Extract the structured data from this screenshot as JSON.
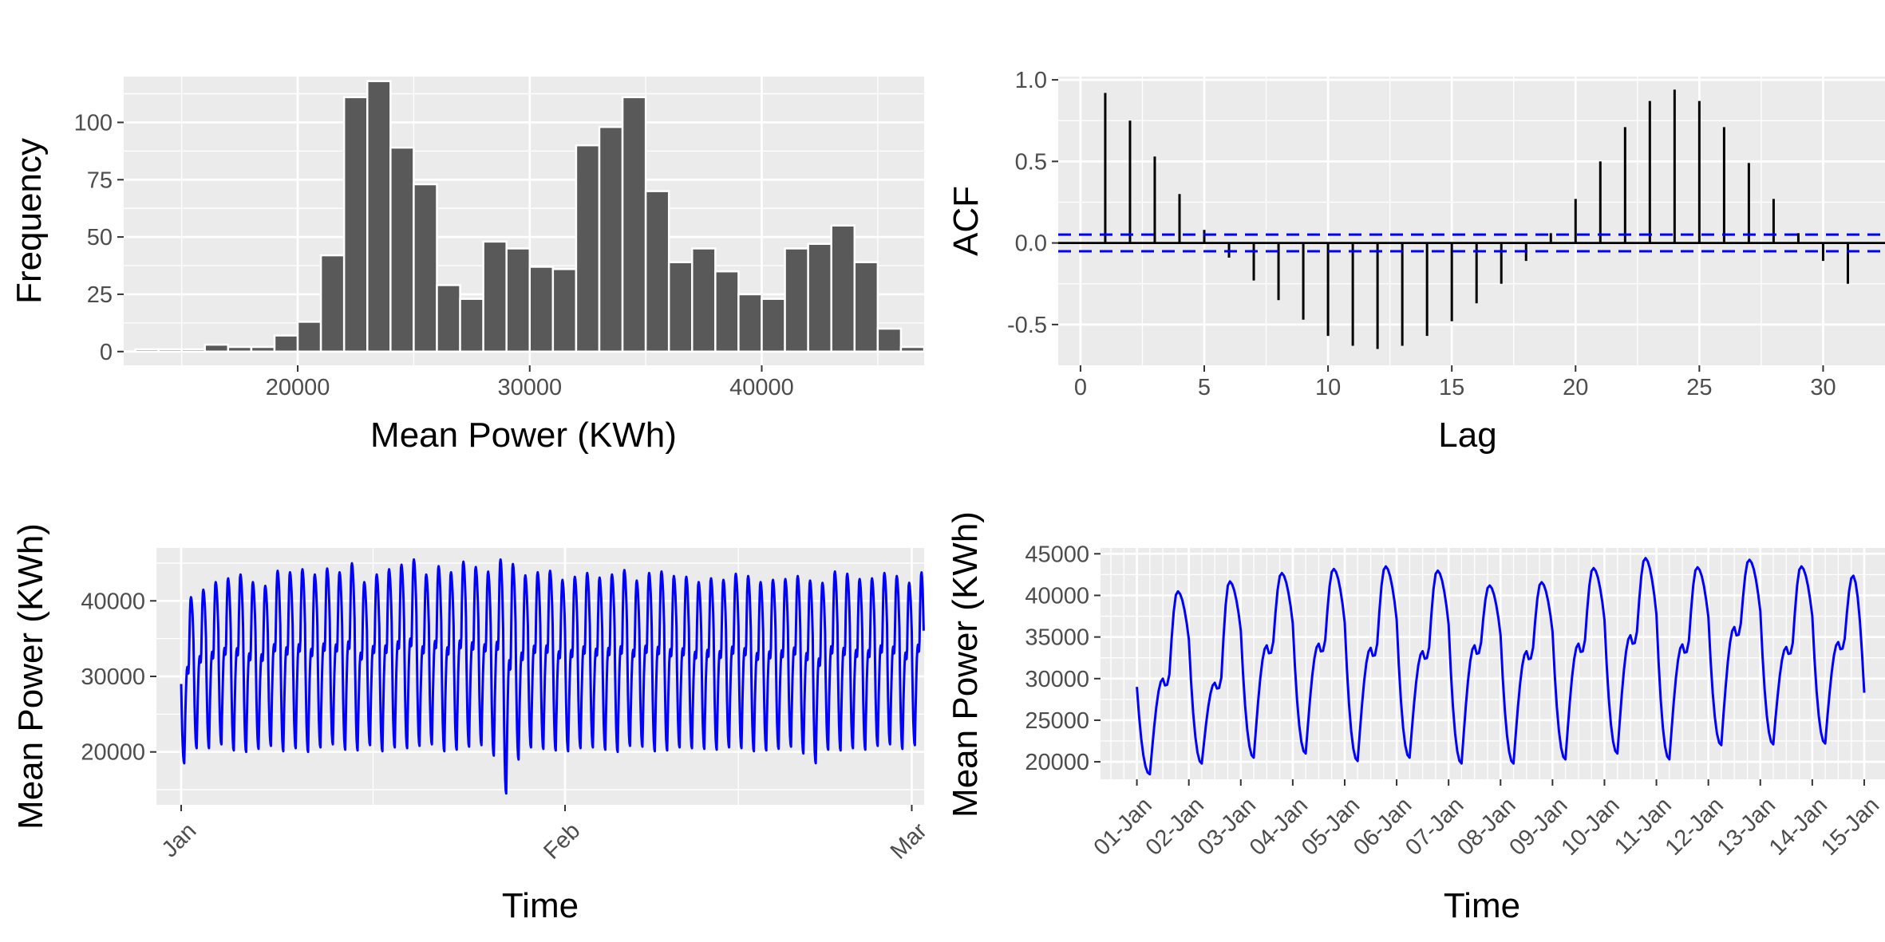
{
  "chart_data": [
    {
      "type": "bar",
      "subtype": "histogram",
      "xlabel": "Mean Power (KWh)",
      "ylabel": "Frequency",
      "xlim": [
        12500,
        47000
      ],
      "ylim": [
        -6,
        120
      ],
      "xticks": [
        20000,
        30000,
        40000
      ],
      "xtick_labels": [
        "20000",
        "30000",
        "40000"
      ],
      "yticks": [
        0,
        25,
        50,
        75,
        100
      ],
      "ytick_labels": [
        "0",
        "25",
        "50",
        "75",
        "100"
      ],
      "bin_width": 1000,
      "bin_centers": [
        13500,
        14500,
        15500,
        16500,
        17500,
        18500,
        19500,
        20500,
        21500,
        22500,
        23500,
        24500,
        25500,
        26500,
        27500,
        28500,
        29500,
        30500,
        31500,
        32500,
        33500,
        34500,
        35500,
        36500,
        37500,
        38500,
        39500,
        40500,
        41500,
        42500,
        43500,
        44500,
        45500,
        46500
      ],
      "values": [
        1,
        1,
        1,
        3,
        2,
        2,
        7,
        13,
        42,
        111,
        118,
        89,
        73,
        29,
        23,
        48,
        45,
        37,
        36,
        90,
        98,
        111,
        70,
        39,
        45,
        35,
        25,
        23,
        45,
        47,
        55,
        39,
        10,
        2
      ],
      "colors": {
        "bar": "#595959",
        "panel": "#ebebeb",
        "grid": "#ffffff"
      },
      "grid": true
    },
    {
      "type": "bar",
      "subtype": "acf",
      "xlabel": "Lag",
      "ylabel": "ACF",
      "xlim": [
        -0.9,
        32.5
      ],
      "ylim": [
        -0.75,
        1.02
      ],
      "xticks": [
        0,
        5,
        10,
        15,
        20,
        25,
        30
      ],
      "xtick_labels": [
        "0",
        "5",
        "10",
        "15",
        "20",
        "25",
        "30"
      ],
      "yticks": [
        -0.5,
        0.0,
        0.5,
        1.0
      ],
      "ytick_labels": [
        "-0.5",
        "0.0",
        "0.5",
        "1.0"
      ],
      "lags": [
        1,
        2,
        3,
        4,
        5,
        6,
        7,
        8,
        9,
        10,
        11,
        12,
        13,
        14,
        15,
        16,
        17,
        18,
        19,
        20,
        21,
        22,
        23,
        24,
        25,
        26,
        27,
        28,
        29,
        30,
        31
      ],
      "values": [
        0.92,
        0.75,
        0.53,
        0.3,
        0.08,
        -0.09,
        -0.23,
        -0.35,
        -0.47,
        -0.57,
        -0.63,
        -0.65,
        -0.63,
        -0.57,
        -0.48,
        -0.37,
        -0.25,
        -0.11,
        0.06,
        0.27,
        0.5,
        0.71,
        0.87,
        0.94,
        0.87,
        0.71,
        0.49,
        0.27,
        0.06,
        -0.11,
        -0.25
      ],
      "conf_limit": 0.051,
      "colors": {
        "stem": "#000000",
        "conf": "#0000ff",
        "panel": "#ebebeb",
        "grid": "#ffffff"
      },
      "grid": true
    },
    {
      "type": "line",
      "xlabel": "Time",
      "ylabel": "Mean Power (KWh)",
      "x_range": [
        "2000-12-30",
        "2001-03-02"
      ],
      "ylim": [
        13000,
        47000
      ],
      "xticks": [
        "Jan",
        "Feb",
        "Mar"
      ],
      "yticks": [
        20000,
        30000,
        40000
      ],
      "ytick_labels": [
        "20000",
        "30000",
        "40000"
      ],
      "x_start": "2001-01-01",
      "x_end": "2001-03-01",
      "samples_per_day": 24,
      "daily_peaks": [
        40500,
        41500,
        42500,
        43000,
        43500,
        42500,
        42000,
        44000,
        43800,
        44200,
        43500,
        44300,
        43800,
        45000,
        42500,
        43500,
        44200,
        44800,
        45500,
        43500,
        44600,
        43800,
        45200,
        44500,
        43900,
        45500,
        44900,
        43400,
        43800,
        44000,
        42800,
        43200,
        43700,
        43100,
        43500,
        44100,
        42700,
        43700,
        43900,
        43300,
        43200,
        42500,
        43000,
        42800,
        43600,
        43300,
        42500,
        42800,
        42900,
        43300,
        42700,
        42400,
        43900,
        43600,
        42900,
        43000,
        43700,
        43300,
        42400,
        43800
      ],
      "daily_minima": [
        18500,
        20500,
        20500,
        21000,
        20200,
        20000,
        20400,
        20800,
        20100,
        20500,
        20000,
        20600,
        21000,
        20300,
        20200,
        20900,
        20100,
        20600,
        20500,
        20800,
        21000,
        20100,
        20300,
        20700,
        20900,
        19500,
        14500,
        19000,
        20600,
        20400,
        20200,
        20100,
        20500,
        20600,
        20300,
        20000,
        20800,
        20700,
        20100,
        20200,
        20600,
        20500,
        20400,
        20300,
        20600,
        20500,
        20100,
        20200,
        20400,
        20700,
        19800,
        18500,
        20300,
        20200,
        20500,
        20300,
        20800,
        21000,
        20400,
        20900
      ],
      "colors": {
        "line": "#0000ff",
        "panel": "#ebebeb",
        "grid": "#ffffff"
      },
      "grid": true
    },
    {
      "type": "line",
      "xlabel": "Time",
      "ylabel": "Mean Power (KWh)",
      "xlim_days": [
        -0.7,
        14.4
      ],
      "ylim": [
        17900,
        45700
      ],
      "xticks": [
        "01-Jan",
        "02-Jan",
        "03-Jan",
        "04-Jan",
        "05-Jan",
        "06-Jan",
        "07-Jan",
        "08-Jan",
        "09-Jan",
        "10-Jan",
        "11-Jan",
        "12-Jan",
        "13-Jan",
        "14-Jan",
        "15-Jan"
      ],
      "yticks": [
        20000,
        25000,
        30000,
        35000,
        40000,
        45000
      ],
      "ytick_labels": [
        "20000",
        "25000",
        "30000",
        "35000",
        "40000",
        "45000"
      ],
      "samples_per_day": 24,
      "daily_peaks": [
        40500,
        41700,
        42700,
        43200,
        43500,
        43000,
        41200,
        41600,
        43300,
        44500,
        43400,
        44300,
        43500,
        42400
      ],
      "daily_shoulders": [
        30000,
        29500,
        34000,
        34200,
        33700,
        33300,
        34000,
        33300,
        34200,
        35200,
        34100,
        36200,
        33800,
        34400
      ],
      "daily_minima": [
        18500,
        19800,
        20500,
        21000,
        20100,
        20500,
        19800,
        19800,
        20300,
        21000,
        20300,
        22000,
        22100,
        22200
      ],
      "end_value": 28300,
      "colors": {
        "line": "#0000ff",
        "panel": "#ebebeb",
        "grid": "#ffffff"
      },
      "grid": true
    }
  ]
}
